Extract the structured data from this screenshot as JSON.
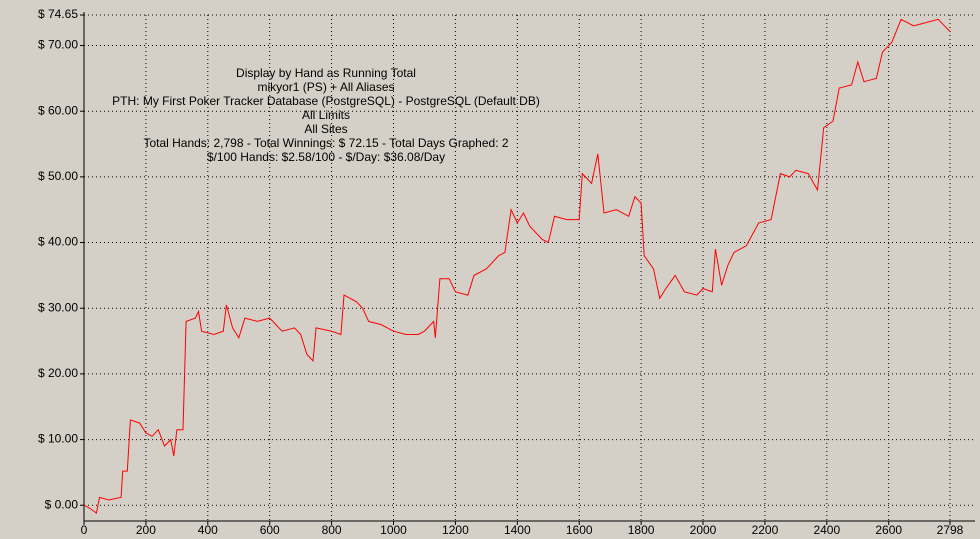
{
  "chart_data": {
    "type": "line",
    "title": "Display by Hand as Running Total",
    "subtitle_lines": [
      "mikyor1 (PS) + All Aliases",
      "PTH: My First Poker Tracker Database (PostgreSQL) - PostgreSQL (Default DB)",
      "All Limits",
      "All Sites",
      "Total Hands: 2,798 - Total Winnings: $ 72.15 - Total Days Graphed: 2",
      "$/100 Hands: $2.58/100 - $/Day: $36.08/Day"
    ],
    "xlim": [
      0,
      2798
    ],
    "xticks": [
      0,
      200,
      400,
      600,
      800,
      1000,
      1200,
      1400,
      1600,
      1800,
      2000,
      2200,
      2400,
      2600,
      2798
    ],
    "ylim": [
      -2.4,
      74.65
    ],
    "yticks": [
      {
        "value": 0,
        "label": "$ 0.00"
      },
      {
        "value": 10,
        "label": "$ 10.00"
      },
      {
        "value": 20,
        "label": "$ 20.00"
      },
      {
        "value": 30,
        "label": "$ 30.00"
      },
      {
        "value": 40,
        "label": "$ 40.00"
      },
      {
        "value": 50,
        "label": "$ 50.00"
      },
      {
        "value": 60,
        "label": "$ 60.00"
      },
      {
        "value": 70,
        "label": "$ 70.00"
      },
      {
        "value": 74.65,
        "label": "$ 74.65"
      }
    ],
    "grid": true,
    "series": [
      {
        "color": "#ff0000",
        "x": [
          0,
          20,
          40,
          50,
          80,
          120,
          125,
          140,
          150,
          180,
          200,
          220,
          240,
          260,
          280,
          290,
          300,
          320,
          330,
          360,
          370,
          380,
          420,
          450,
          460,
          480,
          500,
          520,
          560,
          600,
          620,
          640,
          680,
          700,
          720,
          740,
          750,
          800,
          830,
          840,
          880,
          900,
          920,
          960,
          1000,
          1040,
          1080,
          1100,
          1130,
          1135,
          1150,
          1180,
          1200,
          1240,
          1260,
          1300,
          1340,
          1360,
          1380,
          1400,
          1420,
          1440,
          1480,
          1500,
          1520,
          1560,
          1600,
          1610,
          1640,
          1660,
          1680,
          1720,
          1760,
          1780,
          1800,
          1810,
          1840,
          1860,
          1880,
          1910,
          1940,
          1980,
          2000,
          2030,
          2040,
          2060,
          2080,
          2100,
          2140,
          2180,
          2220,
          2250,
          2280,
          2300,
          2340,
          2370,
          2390,
          2420,
          2440,
          2480,
          2500,
          2520,
          2560,
          2580,
          2610,
          2640,
          2680,
          2720,
          2760,
          2780,
          2798
        ],
        "values": [
          0,
          -0.5,
          -1.2,
          1.2,
          0.8,
          1.2,
          5.2,
          5.2,
          13,
          12.5,
          11,
          10.5,
          11.5,
          9,
          10,
          7.5,
          11.5,
          11.5,
          28,
          28.5,
          29.5,
          26.5,
          26,
          26.5,
          30.5,
          27,
          25.5,
          28.5,
          28,
          28.5,
          27.5,
          26.5,
          27,
          26,
          23,
          22,
          27,
          26.5,
          26,
          32,
          31,
          30,
          28,
          27.5,
          26.5,
          26,
          26,
          26.5,
          28,
          25.5,
          34.5,
          34.5,
          32.5,
          32,
          35,
          36,
          38,
          38.5,
          45,
          43,
          44.5,
          42.5,
          40.5,
          40,
          44,
          43.5,
          43.5,
          50.5,
          49,
          53.5,
          44.5,
          45,
          44,
          47,
          46,
          38,
          36,
          31.5,
          33,
          35,
          32.5,
          32,
          33,
          32.5,
          39,
          33.5,
          36.5,
          38.5,
          39.5,
          43,
          43.5,
          50.5,
          50,
          51,
          50.5,
          48,
          57.5,
          58.5,
          63.5,
          64,
          67.5,
          64.5,
          65,
          69,
          70.5,
          74,
          73,
          73.5,
          74,
          73,
          72.15
        ]
      }
    ]
  }
}
